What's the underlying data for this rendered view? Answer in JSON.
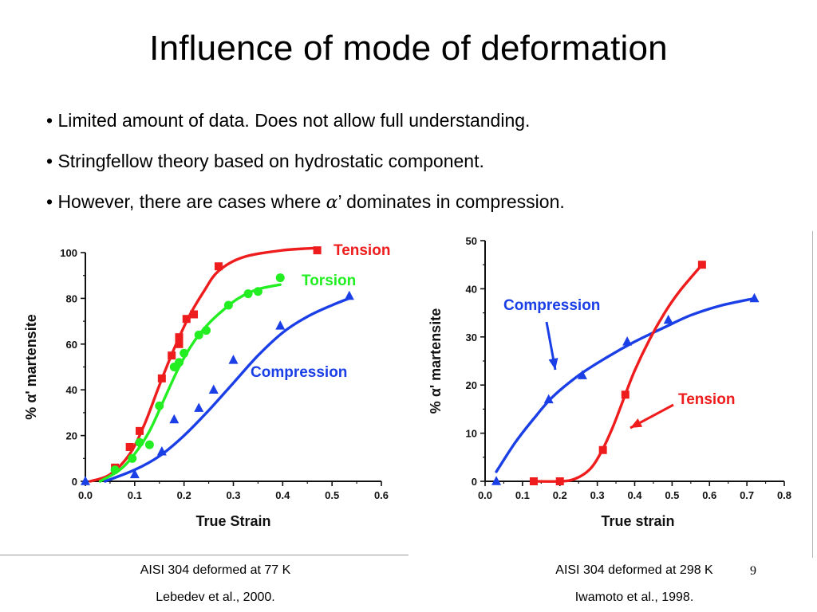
{
  "slide": {
    "title": "Influence of mode of deformation",
    "bullets": [
      "• Limited amount of data. Does not allow full understanding.",
      "• Stringfellow theory based on hydrostatic component."
    ],
    "bullet3_prefix": "• However, there are cases where ",
    "bullet3_symbol": "α",
    "bullet3_suffix": "’ dominates in compression.",
    "page_number": "9",
    "captions": {
      "left_line1": "AISI 304 deformed at 77 K",
      "left_line2": "Lebedev et al., 2000.",
      "right_line1": "AISI 304 deformed at 298 K",
      "right_line2": "Iwamoto et al., 1998."
    }
  },
  "chart_data": [
    {
      "type": "scatter",
      "xlabel": "True Strain",
      "ylabel": "% α' martensite",
      "xlim": [
        0,
        0.6
      ],
      "ylim": [
        0,
        100
      ],
      "xticks": [
        "0.0",
        "0.1",
        "0.2",
        "0.3",
        "0.4",
        "0.5",
        "0.6"
      ],
      "yticks": [
        "0",
        "20",
        "40",
        "60",
        "80",
        "100"
      ],
      "grid": false,
      "series": [
        {
          "name": "Tension",
          "color": "#ee1c1c",
          "marker": "square",
          "points": [
            [
              0.06,
              6
            ],
            [
              0.09,
              15
            ],
            [
              0.11,
              22
            ],
            [
              0.155,
              45
            ],
            [
              0.175,
              55
            ],
            [
              0.19,
              63
            ],
            [
              0.19,
              60
            ],
            [
              0.205,
              71
            ],
            [
              0.22,
              73
            ],
            [
              0.27,
              94
            ],
            [
              0.47,
              101
            ]
          ],
          "curve": [
            [
              0.01,
              0
            ],
            [
              0.05,
              3
            ],
            [
              0.09,
              12
            ],
            [
              0.12,
              25
            ],
            [
              0.15,
              42
            ],
            [
              0.18,
              58
            ],
            [
              0.21,
              72
            ],
            [
              0.24,
              83
            ],
            [
              0.27,
              92
            ],
            [
              0.32,
              98
            ],
            [
              0.4,
              101
            ],
            [
              0.47,
              102
            ]
          ]
        },
        {
          "name": "Torsion",
          "color": "#22ee22",
          "marker": "circle",
          "points": [
            [
              0.06,
              5
            ],
            [
              0.095,
              10
            ],
            [
              0.11,
              17
            ],
            [
              0.13,
              16
            ],
            [
              0.15,
              33
            ],
            [
              0.18,
              50
            ],
            [
              0.19,
              52
            ],
            [
              0.2,
              56
            ],
            [
              0.23,
              64
            ],
            [
              0.245,
              66
            ],
            [
              0.29,
              77
            ],
            [
              0.33,
              82
            ],
            [
              0.35,
              83
            ],
            [
              0.395,
              89
            ]
          ],
          "curve": [
            [
              0.03,
              0
            ],
            [
              0.07,
              5
            ],
            [
              0.1,
              12
            ],
            [
              0.13,
              22
            ],
            [
              0.16,
              36
            ],
            [
              0.19,
              50
            ],
            [
              0.22,
              61
            ],
            [
              0.25,
              69
            ],
            [
              0.28,
              75
            ],
            [
              0.31,
              80
            ],
            [
              0.35,
              84
            ],
            [
              0.395,
              86
            ]
          ]
        },
        {
          "name": "Compression",
          "color": "#1a3fe6",
          "marker": "triangle",
          "points": [
            [
              0.0,
              0
            ],
            [
              0.1,
              3
            ],
            [
              0.155,
              13
            ],
            [
              0.18,
              27
            ],
            [
              0.23,
              32
            ],
            [
              0.26,
              40
            ],
            [
              0.3,
              53
            ],
            [
              0.395,
              68
            ],
            [
              0.535,
              81
            ]
          ],
          "curve": [
            [
              0.04,
              0
            ],
            [
              0.1,
              5
            ],
            [
              0.15,
              11
            ],
            [
              0.2,
              20
            ],
            [
              0.25,
              31
            ],
            [
              0.3,
              43
            ],
            [
              0.35,
              55
            ],
            [
              0.4,
              65
            ],
            [
              0.45,
              72
            ],
            [
              0.5,
              77
            ],
            [
              0.535,
              80
            ]
          ]
        }
      ],
      "annotations": [
        "Tension",
        "Torsion",
        "Compression"
      ]
    },
    {
      "type": "scatter",
      "xlabel": "True strain",
      "ylabel": "% α' martensite",
      "xlim": [
        0,
        0.8
      ],
      "ylim": [
        0,
        50
      ],
      "xticks": [
        "0.0",
        "0.1",
        "0.2",
        "0.3",
        "0.4",
        "0.5",
        "0.6",
        "0.7",
        "0.8"
      ],
      "yticks": [
        "0",
        "10",
        "20",
        "30",
        "40",
        "50"
      ],
      "grid": false,
      "series": [
        {
          "name": "Compression",
          "color": "#1a3fe6",
          "marker": "triangle",
          "points": [
            [
              0.03,
              0
            ],
            [
              0.17,
              17
            ],
            [
              0.26,
              22
            ],
            [
              0.38,
              29
            ],
            [
              0.49,
              33.5
            ],
            [
              0.72,
              38
            ]
          ],
          "curve": [
            [
              0.03,
              2
            ],
            [
              0.08,
              8
            ],
            [
              0.13,
              13
            ],
            [
              0.18,
              17.5
            ],
            [
              0.25,
              22
            ],
            [
              0.32,
              25.5
            ],
            [
              0.4,
              29
            ],
            [
              0.48,
              32
            ],
            [
              0.55,
              34.5
            ],
            [
              0.63,
              36.5
            ],
            [
              0.72,
              38
            ]
          ]
        },
        {
          "name": "Tension",
          "color": "#ee1c1c",
          "marker": "square",
          "points": [
            [
              0.13,
              0
            ],
            [
              0.2,
              0
            ],
            [
              0.315,
              6.5
            ],
            [
              0.375,
              18
            ],
            [
              0.58,
              45
            ]
          ],
          "curve": [
            [
              0.13,
              0
            ],
            [
              0.2,
              0
            ],
            [
              0.24,
              0.5
            ],
            [
              0.28,
              2.5
            ],
            [
              0.31,
              6
            ],
            [
              0.34,
              11
            ],
            [
              0.37,
              17
            ],
            [
              0.4,
              23
            ],
            [
              0.44,
              29.5
            ],
            [
              0.48,
              35
            ],
            [
              0.52,
              39.5
            ],
            [
              0.58,
              45
            ]
          ]
        }
      ],
      "annotations": [
        "Compression",
        "Tension"
      ]
    }
  ]
}
